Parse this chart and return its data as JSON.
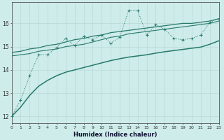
{
  "x": [
    0,
    1,
    2,
    3,
    4,
    5,
    6,
    7,
    8,
    9,
    10,
    11,
    12,
    13,
    14,
    15,
    16,
    17,
    18,
    19,
    20,
    21,
    22,
    23
  ],
  "line_zigzag": [
    12.0,
    12.7,
    13.75,
    14.65,
    14.65,
    14.95,
    15.35,
    15.05,
    15.45,
    15.3,
    15.5,
    15.15,
    15.4,
    16.55,
    16.55,
    15.5,
    15.95,
    15.75,
    15.35,
    15.3,
    15.35,
    15.5,
    16.05,
    16.2
  ],
  "line_upper": [
    14.75,
    14.8,
    14.9,
    14.95,
    15.05,
    15.1,
    15.2,
    15.3,
    15.35,
    15.45,
    15.5,
    15.6,
    15.65,
    15.7,
    15.75,
    15.8,
    15.85,
    15.9,
    15.95,
    16.0,
    16.0,
    16.05,
    16.1,
    16.2
  ],
  "line_mid": [
    14.6,
    14.65,
    14.7,
    14.8,
    14.85,
    14.9,
    15.0,
    15.05,
    15.1,
    15.2,
    15.3,
    15.4,
    15.45,
    15.55,
    15.6,
    15.65,
    15.7,
    15.75,
    15.8,
    15.85,
    15.9,
    15.95,
    16.0,
    16.1
  ],
  "line_lower": [
    12.0,
    12.4,
    12.9,
    13.3,
    13.55,
    13.75,
    13.9,
    14.0,
    14.1,
    14.2,
    14.3,
    14.4,
    14.48,
    14.55,
    14.6,
    14.65,
    14.72,
    14.78,
    14.83,
    14.88,
    14.93,
    14.98,
    15.1,
    15.25
  ],
  "bg_color": "#ceecea",
  "line_color": "#267a6a",
  "grid_color": "#b8d8d6",
  "xlabel": "Humidex (Indice chaleur)",
  "ylabel_ticks": [
    12,
    13,
    14,
    15,
    16
  ],
  "xlim": [
    0,
    23
  ],
  "ylim": [
    11.7,
    16.9
  ]
}
